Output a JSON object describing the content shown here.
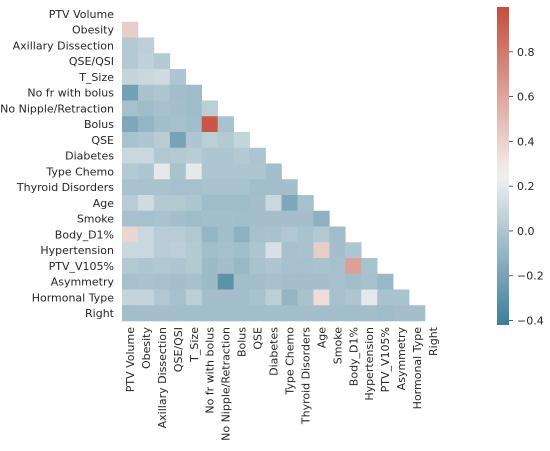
{
  "chart_data": {
    "type": "heatmap",
    "title": "",
    "xlabel": "",
    "ylabel": "",
    "mask": "upper-triangle-including-diagonal",
    "variables": [
      "PTV Volume",
      "Obesity",
      "Axillary Dissection",
      "QSE/QSI",
      "T_Size",
      "No fr with bolus",
      "No Nipple/Retraction",
      "Bolus",
      "QSE",
      "Diabetes",
      "Type Chemo",
      "Thyroid Disorders",
      "Age",
      "Smoke",
      "Body_D1%",
      "Hypertension",
      "PTV_V105%",
      "Asymmetry",
      "Hormonal Type",
      "Right"
    ],
    "values": [
      [],
      [
        0.42
      ],
      [
        0.02,
        0.05
      ],
      [
        0.02,
        0.06,
        0.02
      ],
      [
        0.08,
        0.1,
        0.12,
        0.0
      ],
      [
        -0.22,
        -0.02,
        0.0,
        -0.05,
        -0.06
      ],
      [
        -0.03,
        -0.06,
        -0.03,
        -0.04,
        -0.06,
        0.05
      ],
      [
        -0.18,
        -0.1,
        -0.05,
        -0.03,
        -0.05,
        0.95,
        -0.02
      ],
      [
        -0.02,
        0.0,
        0.03,
        -0.2,
        0.0,
        0.05,
        0.02,
        0.08
      ],
      [
        0.1,
        0.1,
        0.01,
        0.02,
        0.03,
        0.0,
        0.0,
        0.02,
        -0.01
      ],
      [
        0.02,
        0.0,
        0.2,
        -0.02,
        0.2,
        0.0,
        0.0,
        0.0,
        0.0,
        -0.05
      ],
      [
        -0.02,
        -0.02,
        -0.02,
        -0.03,
        -0.03,
        -0.02,
        -0.02,
        -0.02,
        -0.05,
        -0.05,
        -0.04
      ],
      [
        0.03,
        0.12,
        0.02,
        0.02,
        0.0,
        -0.06,
        -0.06,
        -0.06,
        -0.04,
        0.1,
        -0.18,
        -0.03
      ],
      [
        -0.03,
        -0.03,
        -0.02,
        -0.04,
        -0.06,
        -0.04,
        -0.04,
        -0.05,
        -0.04,
        -0.04,
        -0.04,
        -0.04,
        -0.12
      ],
      [
        0.38,
        0.1,
        0.03,
        0.03,
        0.01,
        -0.1,
        -0.05,
        -0.12,
        -0.03,
        -0.02,
        0.01,
        -0.02,
        0.02,
        -0.05
      ],
      [
        0.1,
        0.1,
        0.03,
        0.05,
        0.02,
        -0.05,
        -0.03,
        -0.05,
        0.0,
        0.15,
        -0.03,
        -0.02,
        0.42,
        -0.04,
        0.0
      ],
      [
        0.02,
        0.0,
        0.01,
        0.0,
        0.02,
        -0.07,
        -0.04,
        -0.08,
        -0.02,
        0.0,
        -0.03,
        -0.03,
        -0.02,
        -0.03,
        0.62,
        -0.02
      ],
      [
        -0.03,
        -0.02,
        -0.03,
        -0.04,
        -0.03,
        -0.07,
        -0.3,
        -0.05,
        -0.04,
        -0.03,
        -0.04,
        -0.04,
        -0.04,
        -0.03,
        -0.05,
        -0.03,
        -0.08
      ],
      [
        0.08,
        0.08,
        0.01,
        -0.03,
        0.05,
        -0.04,
        -0.04,
        -0.04,
        -0.02,
        0.05,
        -0.1,
        -0.02,
        0.35,
        -0.03,
        0.0,
        0.2,
        -0.02,
        -0.02
      ],
      [
        -0.05,
        -0.04,
        -0.04,
        -0.04,
        -0.05,
        -0.05,
        -0.05,
        -0.05,
        -0.05,
        -0.05,
        -0.04,
        -0.04,
        -0.05,
        -0.04,
        -0.05,
        -0.05,
        -0.06,
        -0.04,
        -0.04
      ]
    ],
    "color_scale": {
      "vmin": -0.42,
      "vmax": 1.0,
      "center": 0.25,
      "low_color": "#3d7d99",
      "mid_color": "#f2f2f2",
      "high_color": "#c64c3b"
    },
    "colorbar_ticks": [
      0.8,
      0.6,
      0.4,
      0.2,
      0.0,
      -0.2,
      -0.4
    ],
    "colorbar_tick_labels": [
      "0.8",
      "0.6",
      "0.4",
      "0.2",
      "0.0",
      "−0.2",
      "−0.4"
    ]
  }
}
